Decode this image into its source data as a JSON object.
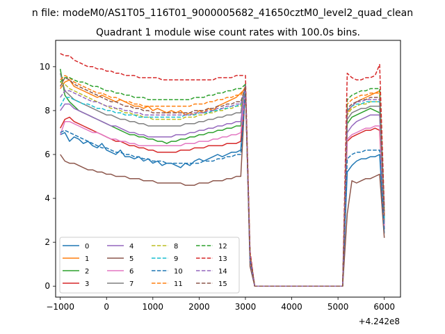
{
  "chart_data": {
    "type": "line",
    "suptitle": "n file: modeM0/AS1T05_116T01_9000005682_41650cztM0_level2_quad_clean",
    "title": "Quadrant 1 module wise count rates with 100.0s bins.",
    "xlabel": "",
    "ylabel": "",
    "x_offset_label": "+4.242e8",
    "xlim": [
      -1100,
      6350
    ],
    "ylim": [
      -0.5,
      11.2
    ],
    "x_ticks": [
      -1000,
      0,
      1000,
      2000,
      3000,
      4000,
      5000,
      6000
    ],
    "y_ticks": [
      0,
      2,
      4,
      6,
      8,
      10
    ],
    "x_start": -1000,
    "x_step": 100,
    "grid": false,
    "legend": {
      "placement": "lower-left",
      "columns": 4
    },
    "series": [
      {
        "name": "0",
        "color": "#1f77b4",
        "dashed": false,
        "values": [
          6.9,
          7.0,
          6.6,
          6.8,
          6.7,
          6.5,
          6.6,
          6.4,
          6.3,
          6.5,
          6.2,
          6.1,
          6.0,
          6.2,
          5.9,
          5.9,
          5.8,
          5.9,
          5.7,
          5.8,
          5.6,
          5.7,
          5.5,
          5.6,
          5.6,
          5.5,
          5.4,
          5.6,
          5.5,
          5.7,
          5.8,
          5.7,
          5.8,
          5.9,
          6.0,
          5.9,
          6.0,
          6.1,
          6.1,
          6.2,
          9.2,
          1.2,
          0,
          0,
          0,
          0,
          0,
          0,
          0,
          0,
          0,
          0,
          0,
          0,
          0,
          0,
          0,
          0,
          0,
          0,
          0,
          0,
          5.2,
          5.5,
          5.7,
          5.8,
          5.8,
          5.9,
          5.9,
          6.0,
          2.4
        ]
      },
      {
        "name": "1",
        "color": "#ff7f0e",
        "dashed": false,
        "values": [
          9.0,
          9.3,
          9.4,
          9.1,
          9.0,
          8.9,
          8.8,
          8.7,
          8.6,
          8.7,
          8.6,
          8.5,
          8.4,
          8.5,
          8.4,
          8.3,
          8.2,
          8.2,
          8.1,
          8.2,
          8.0,
          8.1,
          8.0,
          7.9,
          8.0,
          7.9,
          8.0,
          7.8,
          7.9,
          7.8,
          8.0,
          7.9,
          8.1,
          8.0,
          8.2,
          8.3,
          8.4,
          8.5,
          8.6,
          8.8,
          9.0,
          1.4,
          0,
          0,
          0,
          0,
          0,
          0,
          0,
          0,
          0,
          0,
          0,
          0,
          0,
          0,
          0,
          0,
          0,
          0,
          0,
          0,
          7.9,
          8.2,
          8.4,
          8.5,
          8.6,
          8.7,
          8.8,
          8.9,
          3.3
        ]
      },
      {
        "name": "2",
        "color": "#2ca02c",
        "dashed": false,
        "values": [
          9.9,
          8.7,
          8.4,
          8.2,
          8.0,
          7.9,
          7.8,
          7.7,
          7.6,
          7.5,
          7.4,
          7.3,
          7.2,
          7.1,
          7.0,
          6.9,
          6.9,
          6.8,
          6.8,
          6.7,
          6.7,
          6.6,
          6.6,
          6.5,
          6.6,
          6.6,
          6.7,
          6.7,
          6.8,
          6.8,
          6.9,
          6.9,
          7.0,
          7.0,
          7.1,
          7.1,
          7.2,
          7.2,
          7.3,
          7.3,
          9.1,
          1.3,
          0,
          0,
          0,
          0,
          0,
          0,
          0,
          0,
          0,
          0,
          0,
          0,
          0,
          0,
          0,
          0,
          0,
          0,
          0,
          0,
          7.4,
          7.7,
          7.8,
          7.9,
          8.0,
          8.1,
          8.0,
          7.9,
          2.9
        ]
      },
      {
        "name": "3",
        "color": "#d62728",
        "dashed": false,
        "values": [
          7.2,
          7.6,
          7.7,
          7.5,
          7.4,
          7.3,
          7.2,
          7.1,
          7.0,
          6.9,
          6.8,
          6.7,
          6.6,
          6.6,
          6.5,
          6.4,
          6.4,
          6.3,
          6.3,
          6.2,
          6.2,
          6.1,
          6.1,
          6.1,
          6.1,
          6.1,
          6.2,
          6.2,
          6.2,
          6.3,
          6.3,
          6.3,
          6.4,
          6.4,
          6.4,
          6.4,
          6.5,
          6.5,
          6.5,
          6.6,
          9.0,
          1.2,
          0,
          0,
          0,
          0,
          0,
          0,
          0,
          0,
          0,
          0,
          0,
          0,
          0,
          0,
          0,
          0,
          0,
          0,
          0,
          0,
          6.6,
          6.8,
          6.9,
          7.0,
          7.1,
          7.1,
          7.2,
          7.1,
          2.6
        ]
      },
      {
        "name": "4",
        "color": "#9467bd",
        "dashed": false,
        "values": [
          8.0,
          8.3,
          8.3,
          8.1,
          8.0,
          7.9,
          7.8,
          7.7,
          7.6,
          7.5,
          7.4,
          7.3,
          7.3,
          7.2,
          7.1,
          7.0,
          7.0,
          6.9,
          6.9,
          6.8,
          6.8,
          6.8,
          6.8,
          6.8,
          6.8,
          6.9,
          6.9,
          6.9,
          7.0,
          7.0,
          7.1,
          7.1,
          7.2,
          7.2,
          7.3,
          7.3,
          7.4,
          7.4,
          7.5,
          7.5,
          9.1,
          1.3,
          0,
          0,
          0,
          0,
          0,
          0,
          0,
          0,
          0,
          0,
          0,
          0,
          0,
          0,
          0,
          0,
          0,
          0,
          0,
          0,
          7.0,
          7.3,
          7.5,
          7.6,
          7.7,
          7.8,
          7.8,
          7.8,
          2.8
        ]
      },
      {
        "name": "5",
        "color": "#8c564b",
        "dashed": false,
        "values": [
          6.0,
          5.7,
          5.6,
          5.6,
          5.5,
          5.4,
          5.3,
          5.3,
          5.2,
          5.2,
          5.1,
          5.1,
          5.0,
          5.0,
          5.0,
          4.9,
          4.9,
          4.9,
          4.8,
          4.8,
          4.8,
          4.7,
          4.7,
          4.7,
          4.7,
          4.7,
          4.7,
          4.6,
          4.6,
          4.6,
          4.7,
          4.7,
          4.7,
          4.8,
          4.8,
          4.8,
          4.9,
          4.9,
          5.0,
          5.0,
          9.1,
          0.9,
          0,
          0,
          0,
          0,
          0,
          0,
          0,
          0,
          0,
          0,
          0,
          0,
          0,
          0,
          0,
          0,
          0,
          0,
          0,
          0,
          3.3,
          4.8,
          4.7,
          4.8,
          4.9,
          4.9,
          5.0,
          5.1,
          2.2
        ]
      },
      {
        "name": "6",
        "color": "#e377c2",
        "dashed": false,
        "values": [
          6.9,
          7.5,
          7.5,
          7.4,
          7.3,
          7.2,
          7.1,
          7.0,
          7.0,
          6.9,
          6.8,
          6.7,
          6.7,
          6.6,
          6.6,
          6.5,
          6.5,
          6.4,
          6.4,
          6.4,
          6.4,
          6.4,
          6.4,
          6.4,
          6.4,
          6.4,
          6.4,
          6.5,
          6.5,
          6.5,
          6.6,
          6.6,
          6.6,
          6.7,
          6.7,
          6.8,
          6.8,
          6.9,
          6.9,
          7.0,
          9.0,
          1.2,
          0,
          0,
          0,
          0,
          0,
          0,
          0,
          0,
          0,
          0,
          0,
          0,
          0,
          0,
          0,
          0,
          0,
          0,
          0,
          0,
          6.7,
          6.9,
          7.0,
          7.1,
          7.2,
          7.2,
          7.3,
          7.3,
          2.7
        ]
      },
      {
        "name": "7",
        "color": "#7f7f7f",
        "dashed": false,
        "values": [
          9.7,
          8.9,
          8.7,
          8.5,
          8.4,
          8.3,
          8.2,
          8.1,
          8.0,
          7.9,
          7.8,
          7.8,
          7.7,
          7.6,
          7.6,
          7.5,
          7.5,
          7.4,
          7.4,
          7.3,
          7.3,
          7.3,
          7.3,
          7.3,
          7.3,
          7.3,
          7.3,
          7.4,
          7.4,
          7.4,
          7.5,
          7.5,
          7.6,
          7.6,
          7.7,
          7.7,
          7.8,
          7.8,
          7.9,
          7.9,
          9.2,
          1.4,
          0,
          0,
          0,
          0,
          0,
          0,
          0,
          0,
          0,
          0,
          0,
          0,
          0,
          0,
          0,
          0,
          0,
          0,
          0,
          0,
          7.6,
          7.9,
          8.0,
          8.1,
          8.1,
          8.2,
          8.2,
          8.2,
          3.0
        ]
      },
      {
        "name": "8",
        "color": "#bcbd22",
        "dashed": true,
        "values": [
          9.3,
          9.2,
          9.0,
          8.9,
          8.8,
          8.7,
          8.6,
          8.5,
          8.4,
          8.3,
          8.2,
          8.1,
          8.1,
          8.0,
          7.9,
          7.9,
          7.8,
          7.8,
          7.7,
          7.7,
          7.6,
          7.6,
          7.6,
          7.6,
          7.6,
          7.6,
          7.6,
          7.7,
          7.7,
          7.7,
          7.8,
          7.8,
          7.9,
          7.9,
          8.0,
          8.0,
          8.1,
          8.1,
          8.2,
          8.2,
          9.1,
          1.4,
          0,
          0,
          0,
          0,
          0,
          0,
          0,
          0,
          0,
          0,
          0,
          0,
          0,
          0,
          0,
          0,
          0,
          0,
          0,
          0,
          7.8,
          8.1,
          8.2,
          8.3,
          8.3,
          8.4,
          8.4,
          8.4,
          3.1
        ]
      },
      {
        "name": "9",
        "color": "#17becf",
        "dashed": true,
        "values": [
          8.2,
          8.6,
          8.6,
          8.5,
          8.4,
          8.3,
          8.3,
          8.2,
          8.1,
          8.1,
          8.0,
          8.0,
          7.9,
          7.9,
          7.8,
          7.8,
          7.8,
          7.7,
          7.7,
          7.7,
          7.7,
          7.7,
          7.7,
          7.7,
          7.7,
          7.7,
          7.7,
          7.8,
          7.8,
          7.8,
          7.9,
          7.9,
          7.9,
          8.0,
          8.0,
          8.1,
          8.1,
          8.2,
          8.2,
          8.3,
          9.0,
          1.4,
          0,
          0,
          0,
          0,
          0,
          0,
          0,
          0,
          0,
          0,
          0,
          0,
          0,
          0,
          0,
          0,
          0,
          0,
          0,
          0,
          8.0,
          8.2,
          8.3,
          8.3,
          8.4,
          8.4,
          8.4,
          8.4,
          3.1
        ]
      },
      {
        "name": "10",
        "color": "#1f77b4",
        "dashed": true,
        "values": [
          7.0,
          7.1,
          7.0,
          6.9,
          6.8,
          6.7,
          6.6,
          6.5,
          6.4,
          6.3,
          6.3,
          6.2,
          6.1,
          6.1,
          6.0,
          6.0,
          5.9,
          5.9,
          5.8,
          5.8,
          5.7,
          5.7,
          5.7,
          5.6,
          5.6,
          5.6,
          5.6,
          5.6,
          5.6,
          5.6,
          5.6,
          5.7,
          5.7,
          5.7,
          5.8,
          5.8,
          5.9,
          5.9,
          6.0,
          6.0,
          9.0,
          1.2,
          0,
          0,
          0,
          0,
          0,
          0,
          0,
          0,
          0,
          0,
          0,
          0,
          0,
          0,
          0,
          0,
          0,
          0,
          0,
          0,
          5.8,
          6.0,
          6.1,
          6.1,
          6.2,
          6.2,
          6.2,
          6.2,
          2.5
        ]
      },
      {
        "name": "11",
        "color": "#ff7f0e",
        "dashed": true,
        "values": [
          9.4,
          9.6,
          9.5,
          9.3,
          9.2,
          9.1,
          9.0,
          8.9,
          8.8,
          8.8,
          8.7,
          8.6,
          8.6,
          8.5,
          8.4,
          8.4,
          8.3,
          8.3,
          8.2,
          8.2,
          8.2,
          8.2,
          8.2,
          8.2,
          8.2,
          8.2,
          8.2,
          8.2,
          8.2,
          8.3,
          8.3,
          8.3,
          8.4,
          8.4,
          8.5,
          8.5,
          8.6,
          8.6,
          8.7,
          8.7,
          9.1,
          1.5,
          0,
          0,
          0,
          0,
          0,
          0,
          0,
          0,
          0,
          0,
          0,
          0,
          0,
          0,
          0,
          0,
          0,
          0,
          0,
          0,
          8.3,
          8.5,
          8.6,
          8.7,
          8.7,
          8.8,
          8.8,
          8.8,
          3.3
        ]
      },
      {
        "name": "12",
        "color": "#2ca02c",
        "dashed": true,
        "values": [
          9.3,
          9.5,
          9.5,
          9.4,
          9.3,
          9.3,
          9.2,
          9.1,
          9.1,
          9.0,
          8.9,
          8.9,
          8.8,
          8.8,
          8.7,
          8.7,
          8.6,
          8.6,
          8.6,
          8.5,
          8.5,
          8.5,
          8.5,
          8.5,
          8.5,
          8.5,
          8.5,
          8.5,
          8.5,
          8.6,
          8.6,
          8.6,
          8.7,
          8.7,
          8.8,
          8.8,
          8.9,
          8.9,
          9.0,
          9.0,
          9.2,
          1.5,
          0,
          0,
          0,
          0,
          0,
          0,
          0,
          0,
          0,
          0,
          0,
          0,
          0,
          0,
          0,
          0,
          0,
          0,
          0,
          0,
          8.5,
          8.7,
          8.8,
          8.9,
          8.9,
          9.0,
          9.0,
          9.0,
          3.4
        ]
      },
      {
        "name": "13",
        "color": "#d62728",
        "dashed": true,
        "values": [
          10.6,
          10.5,
          10.5,
          10.3,
          10.2,
          10.1,
          10.0,
          10.0,
          9.9,
          9.9,
          9.8,
          9.8,
          9.7,
          9.7,
          9.6,
          9.6,
          9.6,
          9.5,
          9.5,
          9.5,
          9.5,
          9.5,
          9.4,
          9.4,
          9.4,
          9.4,
          9.4,
          9.4,
          9.4,
          9.4,
          9.4,
          9.4,
          9.4,
          9.4,
          9.5,
          9.5,
          9.5,
          9.5,
          9.6,
          9.6,
          9.6,
          1.6,
          0,
          0,
          0,
          0,
          0,
          0,
          0,
          0,
          0,
          0,
          0,
          0,
          0,
          0,
          0,
          0,
          0,
          0,
          0,
          0,
          9.7,
          9.5,
          9.4,
          9.4,
          9.5,
          9.5,
          9.6,
          10.1,
          3.6
        ]
      },
      {
        "name": "14",
        "color": "#9467bd",
        "dashed": true,
        "values": [
          8.6,
          8.9,
          8.9,
          8.8,
          8.7,
          8.6,
          8.5,
          8.4,
          8.4,
          8.3,
          8.2,
          8.2,
          8.1,
          8.1,
          8.0,
          8.0,
          7.9,
          7.9,
          7.8,
          7.8,
          7.8,
          7.8,
          7.8,
          7.8,
          7.8,
          7.8,
          7.8,
          7.8,
          7.8,
          7.9,
          7.9,
          7.9,
          8.0,
          8.0,
          8.1,
          8.1,
          8.2,
          8.2,
          8.3,
          8.3,
          9.1,
          1.4,
          0,
          0,
          0,
          0,
          0,
          0,
          0,
          0,
          0,
          0,
          0,
          0,
          0,
          0,
          0,
          0,
          0,
          0,
          0,
          0,
          8.0,
          8.2,
          8.4,
          8.4,
          8.5,
          8.5,
          8.5,
          8.5,
          3.2
        ]
      },
      {
        "name": "15",
        "color": "#8c564b",
        "dashed": true,
        "values": [
          9.1,
          9.5,
          9.4,
          9.2,
          9.1,
          9.0,
          8.9,
          8.8,
          8.7,
          8.6,
          8.5,
          8.4,
          8.4,
          8.3,
          8.2,
          8.2,
          8.1,
          8.1,
          8.0,
          8.0,
          7.9,
          7.9,
          7.9,
          7.9,
          7.9,
          7.9,
          7.9,
          7.9,
          7.9,
          8.0,
          8.0,
          8.0,
          8.1,
          8.1,
          8.2,
          8.2,
          8.3,
          8.3,
          8.4,
          8.4,
          9.1,
          1.4,
          0,
          0,
          0,
          0,
          0,
          0,
          0,
          0,
          0,
          0,
          0,
          0,
          0,
          0,
          0,
          0,
          0,
          0,
          0,
          0,
          8.1,
          8.3,
          8.4,
          8.5,
          8.5,
          8.6,
          8.6,
          8.6,
          3.2
        ]
      }
    ]
  }
}
